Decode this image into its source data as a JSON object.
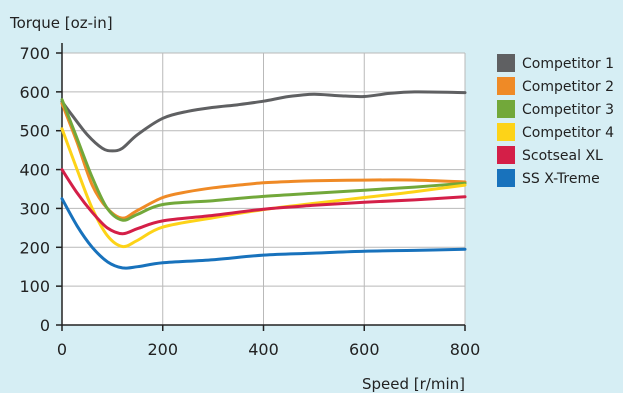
{
  "chart_data": {
    "type": "line",
    "ylabel": "Torque [oz-in]",
    "xlabel": "Speed [r/min]",
    "xlim": [
      0,
      800
    ],
    "ylim": [
      0,
      700
    ],
    "x_ticks": [
      0,
      200,
      400,
      600,
      800
    ],
    "y_ticks": [
      0,
      100,
      200,
      300,
      400,
      500,
      600,
      700
    ],
    "grid": true,
    "legend_position": "right",
    "series": [
      {
        "name": "Competitor 1",
        "color": "#5f6062",
        "points": [
          [
            0,
            575
          ],
          [
            20,
            540
          ],
          [
            50,
            490
          ],
          [
            80,
            455
          ],
          [
            100,
            448
          ],
          [
            120,
            455
          ],
          [
            150,
            490
          ],
          [
            200,
            532
          ],
          [
            250,
            550
          ],
          [
            300,
            560
          ],
          [
            350,
            567
          ],
          [
            400,
            576
          ],
          [
            450,
            588
          ],
          [
            500,
            594
          ],
          [
            550,
            590
          ],
          [
            600,
            588
          ],
          [
            650,
            596
          ],
          [
            700,
            600
          ],
          [
            800,
            598
          ]
        ]
      },
      {
        "name": "Competitor 2",
        "color": "#ef8a26",
        "points": [
          [
            0,
            570
          ],
          [
            30,
            470
          ],
          [
            60,
            360
          ],
          [
            90,
            300
          ],
          [
            120,
            275
          ],
          [
            150,
            295
          ],
          [
            200,
            328
          ],
          [
            250,
            343
          ],
          [
            300,
            353
          ],
          [
            350,
            360
          ],
          [
            400,
            366
          ],
          [
            450,
            369
          ],
          [
            500,
            371
          ],
          [
            600,
            373
          ],
          [
            700,
            373
          ],
          [
            800,
            368
          ]
        ]
      },
      {
        "name": "Competitor 3",
        "color": "#72a83a",
        "points": [
          [
            0,
            580
          ],
          [
            30,
            480
          ],
          [
            60,
            380
          ],
          [
            90,
            300
          ],
          [
            120,
            270
          ],
          [
            150,
            285
          ],
          [
            200,
            310
          ],
          [
            300,
            320
          ],
          [
            400,
            331
          ],
          [
            500,
            339
          ],
          [
            600,
            347
          ],
          [
            700,
            355
          ],
          [
            800,
            365
          ]
        ]
      },
      {
        "name": "Competitor 4",
        "color": "#fdd318",
        "points": [
          [
            0,
            505
          ],
          [
            30,
            400
          ],
          [
            60,
            300
          ],
          [
            90,
            230
          ],
          [
            120,
            202
          ],
          [
            150,
            218
          ],
          [
            200,
            252
          ],
          [
            300,
            276
          ],
          [
            400,
            297
          ],
          [
            500,
            313
          ],
          [
            600,
            328
          ],
          [
            700,
            343
          ],
          [
            800,
            360
          ]
        ]
      },
      {
        "name": "Scotseal XL",
        "color": "#d41f48",
        "points": [
          [
            0,
            400
          ],
          [
            30,
            340
          ],
          [
            60,
            290
          ],
          [
            90,
            250
          ],
          [
            120,
            235
          ],
          [
            150,
            248
          ],
          [
            200,
            268
          ],
          [
            300,
            282
          ],
          [
            400,
            298
          ],
          [
            500,
            308
          ],
          [
            600,
            316
          ],
          [
            700,
            322
          ],
          [
            800,
            330
          ]
        ]
      },
      {
        "name": "SS X-Treme",
        "color": "#1872bc",
        "points": [
          [
            0,
            325
          ],
          [
            30,
            255
          ],
          [
            60,
            200
          ],
          [
            90,
            163
          ],
          [
            120,
            147
          ],
          [
            150,
            150
          ],
          [
            200,
            160
          ],
          [
            300,
            168
          ],
          [
            400,
            180
          ],
          [
            500,
            185
          ],
          [
            600,
            190
          ],
          [
            700,
            192
          ],
          [
            800,
            195
          ]
        ]
      }
    ]
  }
}
